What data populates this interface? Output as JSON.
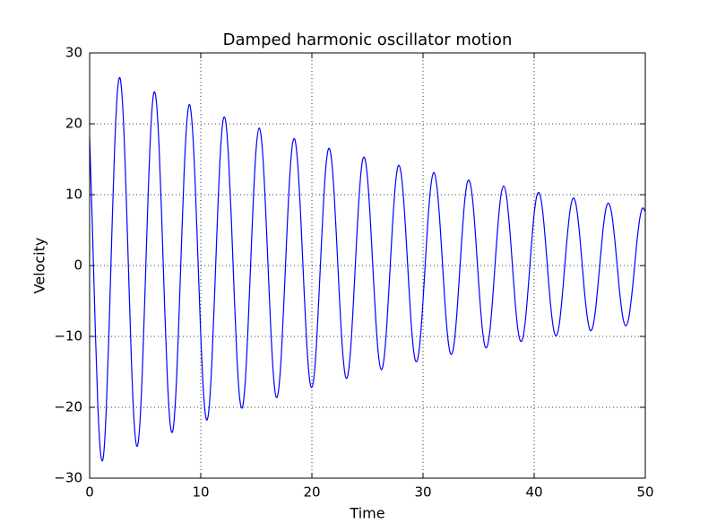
{
  "chart_data": {
    "type": "line",
    "title": "Damped harmonic oscillator motion",
    "xlabel": "Time",
    "ylabel": "Velocity",
    "xlim": [
      0,
      50
    ],
    "xticks": [
      0,
      10,
      20,
      30,
      40,
      50
    ],
    "ylim": [
      -30,
      30
    ],
    "yticks": [
      {
        "value": -30,
        "label": "−30"
      },
      {
        "value": -20,
        "label": "−20"
      },
      {
        "value": -10,
        "label": "−10"
      },
      0,
      10,
      20,
      30
    ],
    "grid": true,
    "x": [
      0,
      0.25,
      0.5,
      0.75,
      1,
      1.25,
      1.5,
      1.75,
      2,
      2.25,
      2.5,
      2.75,
      3,
      3.25,
      3.5,
      3.75,
      4,
      4.25,
      4.5,
      4.75,
      5,
      5.25,
      5.5,
      5.75,
      6,
      6.25,
      6.5,
      6.75,
      7,
      7.25,
      7.5,
      7.75,
      8,
      8.25,
      8.5,
      8.75,
      9,
      9.25,
      9.5,
      9.75,
      10,
      10.25,
      10.5,
      10.75,
      11,
      11.25,
      11.5,
      11.75,
      12,
      12.25,
      12.5,
      12.75,
      13,
      13.25,
      13.5,
      13.75,
      14,
      14.25,
      14.5,
      14.75,
      15,
      15.25,
      15.5,
      15.75,
      16,
      16.25,
      16.5,
      16.75,
      17,
      17.25,
      17.5,
      17.75,
      18,
      18.25,
      18.5,
      18.75,
      19,
      19.25,
      19.5,
      19.75,
      20,
      20.25,
      20.5,
      20.75,
      21,
      21.25,
      21.5,
      21.75,
      22,
      22.25,
      22.5,
      22.75,
      23,
      23.25,
      23.5,
      23.75,
      24,
      24.25,
      24.5,
      24.75,
      25,
      25.25,
      25.5,
      25.75,
      26,
      26.25,
      26.5,
      26.75,
      27,
      27.25,
      27.5,
      27.75,
      28,
      28.25,
      28.5,
      28.75,
      29,
      29.25,
      29.5,
      29.75,
      30,
      30.25,
      30.5,
      30.75,
      31,
      31.25,
      31.5,
      31.75,
      32,
      32.25,
      32.5,
      32.75,
      33,
      33.25,
      33.5,
      33.75,
      34,
      34.25,
      34.5,
      34.75,
      35,
      35.25,
      35.5,
      35.75,
      36,
      36.25,
      36.5,
      36.75,
      37,
      37.25,
      37.5,
      37.75,
      38,
      38.25,
      38.5,
      38.75,
      39,
      39.25,
      39.5,
      39.75,
      40,
      40.25,
      40.5,
      40.75,
      41,
      41.25,
      41.5,
      41.75,
      42,
      42.25,
      42.5,
      42.75,
      43,
      43.25,
      43.5,
      43.75,
      44,
      44.25,
      44.5,
      44.75,
      45,
      45.25,
      45.5,
      45.75,
      46,
      46.25,
      46.5,
      46.75,
      47,
      47.25,
      47.5,
      47.75,
      48,
      48.25,
      48.5,
      48.75,
      49,
      49.25,
      49.5,
      49.75,
      50
    ],
    "series": [
      {
        "color": "#0000ff",
        "values": [
          18.1,
          5.4,
          -8.5,
          -20.2,
          -26.7,
          -26.8,
          -20.2,
          -8.9,
          4.5,
          16.6,
          24.5,
          26.4,
          21.8,
          11.9,
          -0.7,
          -13.0,
          -22.0,
          -25.5,
          -22.8,
          -14.6,
          -2.9,
          9.3,
          19.1,
          24.2,
          23.2,
          16.7,
          6.1,
          -5.8,
          -16.1,
          -22.4,
          -23.2,
          -18.3,
          -9.0,
          2.3,
          13.0,
          20.3,
          22.7,
          19.4,
          11.5,
          0.9,
          -9.8,
          -18.0,
          -21.7,
          -20.1,
          -13.6,
          -3.9,
          6.6,
          15.5,
          20.4,
          20.3,
          15.2,
          6.6,
          -3.6,
          -12.8,
          -18.7,
          -20.0,
          -16.5,
          -8.9,
          0.7,
          10.0,
          16.8,
          19.4,
          17.2,
          10.9,
          2.0,
          -7.2,
          -14.6,
          -18.4,
          -17.6,
          -12.6,
          -4.5,
          4.5,
          12.4,
          17.1,
          17.6,
          13.8,
          6.7,
          -1.9,
          -10.0,
          -15.5,
          -17.2,
          -14.7,
          -8.6,
          -0.5,
          7.6,
          13.8,
          16.5,
          15.2,
          10.2,
          2.8,
          -5.2,
          -11.8,
          -15.5,
          -15.4,
          -11.5,
          -4.8,
          2.9,
          9.8,
          14.3,
          15.2,
          12.4,
          6.7,
          -0.7,
          -7.7,
          -12.8,
          -14.7,
          -13.0,
          -8.2,
          -1.4,
          5.6,
          11.2,
          14.0,
          13.3,
          9.4,
          3.3,
          -3.6,
          -9.5,
          -13.0,
          -13.3,
          -10.4,
          -5.0,
          1.6,
          7.7,
          11.8,
          13.1,
          11.1,
          6.5,
          0.3,
          -5.9,
          -10.5,
          -12.5,
          -11.5,
          -7.7,
          -2.0,
          4.0,
          9.1,
          11.8,
          11.6,
          8.7,
          3.6,
          -2.3,
          -7.5,
          -10.9,
          -11.5,
          -9.4,
          -5.0,
          0.6,
          5.9,
          9.8,
          11.2,
          9.9,
          6.1,
          1.0,
          -4.4,
          -8.6,
          -10.6,
          -10.1,
          -7.1,
          -2.4,
          2.8,
          7.3,
          9.9,
          10.1,
          7.9,
          3.7,
          -1.3,
          -5.9,
          -9.0,
          -9.9,
          -8.4,
          -4.8,
          -0.1,
          4.5,
          8.0,
          9.5,
          8.7,
          5.8,
          1.5,
          -3.2,
          -6.9,
          -9.0,
          -8.8,
          -6.5,
          -2.6,
          1.8,
          5.8,
          8.3,
          8.7,
          7.1,
          3.7,
          -0.5,
          -4.6,
          -7.5,
          -8.5,
          -7.5,
          -4.6,
          -0.7,
          3.4,
          6.6,
          8.1,
          7.6
        ]
      }
    ]
  }
}
